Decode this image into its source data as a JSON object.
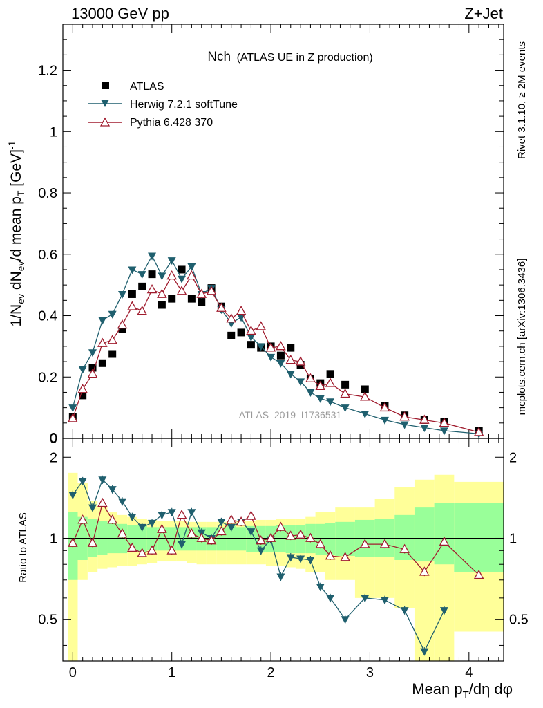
{
  "header": {
    "left": "13000 GeV pp",
    "right": "Z+Jet"
  },
  "side_labels": {
    "rivet": "Rivet 3.1.10, ≥ 2M events",
    "mcplots": "mcplots.cern.ch [arXiv:1306.3436]"
  },
  "colors": {
    "atlas": "#000000",
    "herwig": "#1f5f6e",
    "pythia": "#a01c2e",
    "band_inner": "#99ff99",
    "band_outer": "#ffff99"
  },
  "chart_data": [
    {
      "type": "scatter",
      "title_main": "Nch",
      "title_sub": "(ATLAS UE in Z production)",
      "ylabel": "1/N_ev dN_ev/d mean p_T [GeV]^-1",
      "xlim": [
        -0.1,
        4.35
      ],
      "ylim": [
        0,
        1.35
      ],
      "yticks": [
        "0",
        "0.2",
        "0.4",
        "0.6",
        "0.8",
        "1",
        "1.2"
      ],
      "watermark": "ATLAS_2019_I1736531",
      "legend": [
        "ATLAS",
        "Herwig 7.2.1 softTune",
        "Pythia 6.428 370"
      ],
      "series": [
        {
          "name": "ATLAS",
          "marker": "square",
          "x": [
            0.0,
            0.1,
            0.2,
            0.3,
            0.4,
            0.5,
            0.6,
            0.7,
            0.8,
            0.9,
            1.0,
            1.1,
            1.2,
            1.3,
            1.4,
            1.5,
            1.6,
            1.7,
            1.8,
            1.9,
            2.0,
            2.1,
            2.2,
            2.3,
            2.4,
            2.5,
            2.6,
            2.75,
            2.95,
            3.15,
            3.35,
            3.55,
            3.75,
            4.1
          ],
          "y": [
            0.07,
            0.14,
            0.23,
            0.245,
            0.275,
            0.355,
            0.47,
            0.495,
            0.535,
            0.435,
            0.455,
            0.55,
            0.455,
            0.445,
            0.49,
            0.43,
            0.335,
            0.345,
            0.305,
            0.295,
            0.3,
            0.27,
            0.295,
            0.24,
            0.195,
            0.18,
            0.21,
            0.175,
            0.16,
            0.105,
            0.075,
            0.06,
            0.055,
            0.025
          ]
        },
        {
          "name": "Herwig 7.2.1 softTune",
          "marker": "triangle-down",
          "x": [
            0.0,
            0.1,
            0.2,
            0.3,
            0.4,
            0.5,
            0.6,
            0.7,
            0.8,
            0.9,
            1.0,
            1.1,
            1.2,
            1.3,
            1.4,
            1.5,
            1.6,
            1.7,
            1.8,
            1.9,
            2.0,
            2.1,
            2.2,
            2.3,
            2.4,
            2.5,
            2.6,
            2.75,
            2.95,
            3.15,
            3.35,
            3.55,
            3.75,
            4.1
          ],
          "y": [
            0.1,
            0.225,
            0.28,
            0.385,
            0.405,
            0.47,
            0.55,
            0.535,
            0.595,
            0.53,
            0.58,
            0.52,
            0.56,
            0.47,
            0.49,
            0.42,
            0.375,
            0.395,
            0.33,
            0.3,
            0.265,
            0.245,
            0.21,
            0.185,
            0.15,
            0.13,
            0.12,
            0.1,
            0.08,
            0.06,
            0.045,
            0.035,
            0.025,
            0.015
          ]
        },
        {
          "name": "Pythia 6.428 370",
          "marker": "triangle-up-open",
          "x": [
            0.0,
            0.1,
            0.2,
            0.3,
            0.4,
            0.5,
            0.6,
            0.7,
            0.8,
            0.9,
            1.0,
            1.1,
            1.2,
            1.3,
            1.4,
            1.5,
            1.6,
            1.7,
            1.8,
            1.9,
            2.0,
            2.1,
            2.2,
            2.3,
            2.4,
            2.5,
            2.6,
            2.75,
            2.95,
            3.15,
            3.35,
            3.55,
            3.75,
            4.1
          ],
          "y": [
            0.065,
            0.16,
            0.21,
            0.31,
            0.32,
            0.37,
            0.43,
            0.415,
            0.485,
            0.47,
            0.53,
            0.48,
            0.53,
            0.47,
            0.48,
            0.425,
            0.39,
            0.415,
            0.35,
            0.365,
            0.295,
            0.3,
            0.255,
            0.25,
            0.195,
            0.17,
            0.18,
            0.145,
            0.135,
            0.1,
            0.07,
            0.06,
            0.05,
            0.02
          ]
        }
      ]
    },
    {
      "type": "scatter",
      "ylabel": "Ratio to ATLAS",
      "xlabel": "Mean p_T/dη dφ",
      "xlim": [
        -0.1,
        4.35
      ],
      "ylim": [
        0.35,
        2.35
      ],
      "yticks": [
        "0.5",
        "1",
        "2"
      ],
      "xticks": [
        "0",
        "1",
        "2",
        "3",
        "4"
      ],
      "reference": 1,
      "band_edges": [
        -0.05,
        0.05,
        0.15,
        0.25,
        0.35,
        0.45,
        0.55,
        0.65,
        0.75,
        0.85,
        0.95,
        1.05,
        1.15,
        1.25,
        1.35,
        1.45,
        1.55,
        1.65,
        1.75,
        1.85,
        1.95,
        2.05,
        2.15,
        2.25,
        2.35,
        2.45,
        2.55,
        2.65,
        2.85,
        3.05,
        3.25,
        3.45,
        3.65,
        3.85,
        4.35
      ],
      "band_inner_lo": [
        0.7,
        0.83,
        0.85,
        0.87,
        0.88,
        0.88,
        0.89,
        0.89,
        0.9,
        0.9,
        0.9,
        0.9,
        0.9,
        0.9,
        0.9,
        0.9,
        0.9,
        0.9,
        0.89,
        0.89,
        0.89,
        0.89,
        0.88,
        0.88,
        0.88,
        0.87,
        0.87,
        0.86,
        0.85,
        0.85,
        0.83,
        0.82,
        0.8,
        0.75
      ],
      "band_inner_hi": [
        1.25,
        1.2,
        1.18,
        1.16,
        1.14,
        1.13,
        1.12,
        1.12,
        1.1,
        1.1,
        1.1,
        1.1,
        1.1,
        1.1,
        1.1,
        1.1,
        1.11,
        1.1,
        1.11,
        1.11,
        1.11,
        1.12,
        1.12,
        1.12,
        1.13,
        1.13,
        1.14,
        1.15,
        1.17,
        1.18,
        1.22,
        1.3,
        1.35,
        1.35
      ],
      "band_outer_lo": [
        0.35,
        0.7,
        0.75,
        0.77,
        0.78,
        0.79,
        0.79,
        0.8,
        0.81,
        0.82,
        0.82,
        0.82,
        0.81,
        0.8,
        0.8,
        0.8,
        0.8,
        0.8,
        0.8,
        0.8,
        0.79,
        0.79,
        0.78,
        0.77,
        0.75,
        0.75,
        0.7,
        0.7,
        0.6,
        0.6,
        0.55,
        0.3,
        0.35,
        0.45
      ],
      "band_outer_hi": [
        1.75,
        1.6,
        1.38,
        1.3,
        1.25,
        1.22,
        1.2,
        1.18,
        1.17,
        1.16,
        1.16,
        1.16,
        1.15,
        1.15,
        1.15,
        1.15,
        1.15,
        1.16,
        1.16,
        1.17,
        1.17,
        1.18,
        1.18,
        1.18,
        1.2,
        1.25,
        1.25,
        1.3,
        1.3,
        1.4,
        1.55,
        1.65,
        1.72,
        1.62
      ],
      "series": [
        {
          "name": "Herwig 7.2.1 softTune",
          "marker": "triangle-down",
          "x": [
            0.0,
            0.1,
            0.2,
            0.3,
            0.4,
            0.5,
            0.6,
            0.7,
            0.8,
            0.9,
            1.0,
            1.1,
            1.2,
            1.3,
            1.4,
            1.5,
            1.6,
            1.7,
            1.8,
            1.9,
            2.0,
            2.1,
            2.2,
            2.3,
            2.4,
            2.5,
            2.6,
            2.75,
            2.95,
            3.15,
            3.35,
            3.55,
            3.75
          ],
          "y": [
            1.45,
            1.63,
            1.3,
            1.65,
            1.52,
            1.37,
            1.2,
            1.1,
            1.14,
            1.22,
            1.25,
            0.95,
            1.25,
            1.05,
            1.0,
            1.15,
            1.1,
            1.15,
            1.06,
            0.9,
            0.99,
            0.72,
            0.85,
            0.84,
            0.83,
            0.66,
            0.6,
            0.5,
            0.6,
            0.59,
            0.54,
            0.38,
            0.54
          ]
        },
        {
          "name": "Pythia 6.428 370",
          "marker": "triangle-up-open",
          "x": [
            0.0,
            0.1,
            0.2,
            0.3,
            0.4,
            0.5,
            0.6,
            0.7,
            0.8,
            0.9,
            1.0,
            1.1,
            1.2,
            1.3,
            1.4,
            1.5,
            1.6,
            1.7,
            1.8,
            1.9,
            2.0,
            2.1,
            2.2,
            2.3,
            2.4,
            2.5,
            2.6,
            2.75,
            2.95,
            3.15,
            3.35,
            3.55,
            3.75,
            4.1
          ],
          "y": [
            0.96,
            1.17,
            0.96,
            1.35,
            1.17,
            1.04,
            0.92,
            0.88,
            0.9,
            1.08,
            0.9,
            1.22,
            1.04,
            1.0,
            0.98,
            1.06,
            1.17,
            1.15,
            1.21,
            0.98,
            1.0,
            1.1,
            1.02,
            1.03,
            1.0,
            0.95,
            0.86,
            0.85,
            0.95,
            0.95,
            0.91,
            0.75,
            0.97,
            0.73
          ]
        }
      ]
    }
  ]
}
